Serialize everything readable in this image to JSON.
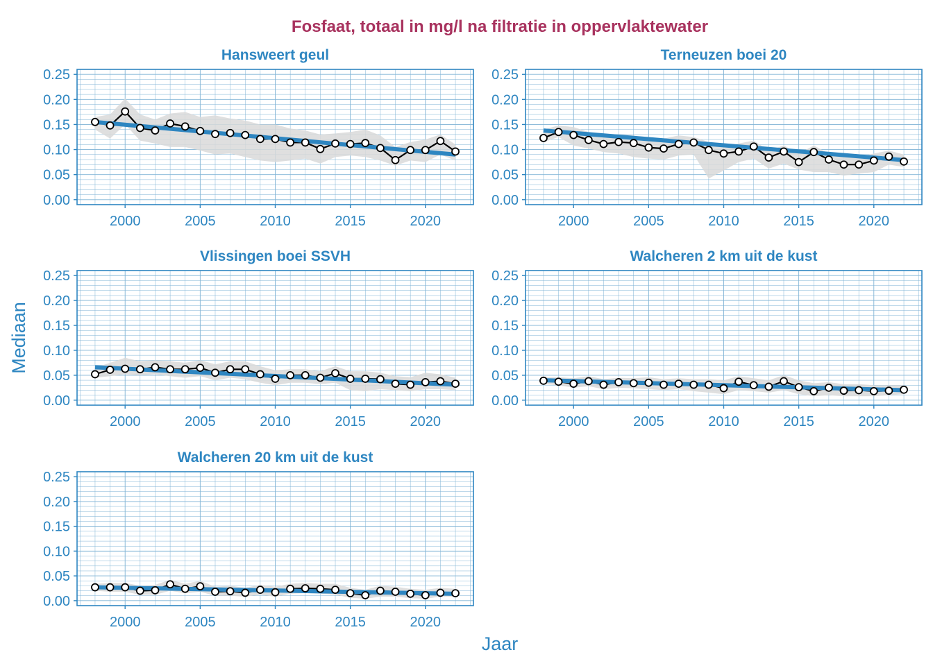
{
  "figure": {
    "title": "Fosfaat, totaal in mg/l na filtratie in oppervlaktewater",
    "xlabel": "Jaar",
    "ylabel": "Mediaan"
  },
  "colors": {
    "title": "#A8325E",
    "axis": "#2E86C1",
    "grid": "#7FB3D5",
    "trend": "#2E86C1",
    "band": "#D9D9D9",
    "points": "#000000",
    "point_fill": "#ffffff"
  },
  "chart_data": [
    {
      "type": "line",
      "title": "Hansweert geul",
      "xlim": [
        1996.8,
        2023.2
      ],
      "ylim": [
        -0.01,
        0.26
      ],
      "x_ticks": [
        2000,
        2005,
        2010,
        2015,
        2020
      ],
      "y_ticks": [
        "0.00",
        "0.05",
        "0.10",
        "0.15",
        "0.20",
        "0.25"
      ],
      "x": [
        1998,
        1999,
        2000,
        2001,
        2002,
        2003,
        2004,
        2005,
        2006,
        2007,
        2008,
        2009,
        2010,
        2011,
        2012,
        2013,
        2014,
        2015,
        2016,
        2017,
        2018,
        2019,
        2020,
        2021,
        2022
      ],
      "values": [
        0.155,
        0.148,
        0.176,
        0.143,
        0.138,
        0.152,
        0.146,
        0.137,
        0.131,
        0.133,
        0.129,
        0.121,
        0.121,
        0.114,
        0.114,
        0.101,
        0.112,
        0.111,
        0.113,
        0.103,
        0.079,
        0.099,
        0.099,
        0.117,
        0.096
      ],
      "band_low": [
        0.14,
        0.122,
        0.15,
        0.118,
        0.112,
        0.105,
        0.105,
        0.098,
        0.09,
        0.092,
        0.085,
        0.078,
        0.075,
        0.078,
        0.082,
        0.072,
        0.085,
        0.088,
        0.085,
        0.078,
        0.068,
        0.078,
        0.075,
        0.09,
        0.078
      ],
      "band_high": [
        0.165,
        0.17,
        0.202,
        0.17,
        0.16,
        0.172,
        0.175,
        0.165,
        0.168,
        0.162,
        0.158,
        0.15,
        0.15,
        0.142,
        0.138,
        0.13,
        0.132,
        0.135,
        0.14,
        0.128,
        0.105,
        0.115,
        0.12,
        0.13,
        0.11
      ],
      "trend": [
        [
          1998,
          0.155
        ],
        [
          2022,
          0.09
        ]
      ]
    },
    {
      "type": "line",
      "title": "Terneuzen boei 20",
      "xlim": [
        1996.8,
        2023.2
      ],
      "ylim": [
        -0.01,
        0.26
      ],
      "x_ticks": [
        2000,
        2005,
        2010,
        2015,
        2020
      ],
      "y_ticks": [
        "0.00",
        "0.05",
        "0.10",
        "0.15",
        "0.20",
        "0.25"
      ],
      "x": [
        1998,
        1999,
        2000,
        2001,
        2002,
        2003,
        2004,
        2005,
        2006,
        2007,
        2008,
        2009,
        2010,
        2011,
        2012,
        2013,
        2014,
        2015,
        2016,
        2017,
        2018,
        2019,
        2020,
        2021,
        2022
      ],
      "values": [
        0.123,
        0.135,
        0.129,
        0.119,
        0.111,
        0.115,
        0.113,
        0.104,
        0.102,
        0.111,
        0.114,
        0.099,
        0.092,
        0.096,
        0.106,
        0.084,
        0.096,
        0.075,
        0.095,
        0.08,
        0.07,
        0.07,
        0.078,
        0.086,
        0.076
      ],
      "band_low": [
        0.115,
        0.125,
        0.108,
        0.102,
        0.095,
        0.092,
        0.085,
        0.082,
        0.08,
        0.088,
        0.09,
        0.042,
        0.058,
        0.075,
        0.082,
        0.062,
        0.072,
        0.06,
        0.055,
        0.055,
        0.048,
        0.052,
        0.055,
        0.07,
        0.065
      ],
      "band_high": [
        0.14,
        0.148,
        0.145,
        0.135,
        0.128,
        0.13,
        0.128,
        0.122,
        0.122,
        0.128,
        0.125,
        0.115,
        0.105,
        0.112,
        0.118,
        0.098,
        0.108,
        0.092,
        0.108,
        0.092,
        0.085,
        0.085,
        0.092,
        0.098,
        0.09
      ],
      "trend": [
        [
          1998,
          0.138
        ],
        [
          2022,
          0.079
        ]
      ]
    },
    {
      "type": "line",
      "title": "Vlissingen boei SSVH",
      "xlim": [
        1996.8,
        2023.2
      ],
      "ylim": [
        -0.01,
        0.26
      ],
      "x_ticks": [
        2000,
        2005,
        2010,
        2015,
        2020
      ],
      "y_ticks": [
        "0.00",
        "0.05",
        "0.10",
        "0.15",
        "0.20",
        "0.25"
      ],
      "x": [
        1998,
        1999,
        2000,
        2001,
        2002,
        2003,
        2004,
        2005,
        2006,
        2007,
        2008,
        2009,
        2010,
        2011,
        2012,
        2013,
        2014,
        2015,
        2016,
        2017,
        2018,
        2019,
        2020,
        2021,
        2022
      ],
      "values": [
        0.052,
        0.061,
        0.063,
        0.062,
        0.066,
        0.062,
        0.062,
        0.065,
        0.055,
        0.062,
        0.062,
        0.052,
        0.043,
        0.05,
        0.05,
        0.045,
        0.054,
        0.043,
        0.043,
        0.042,
        0.033,
        0.031,
        0.036,
        0.038,
        0.033
      ],
      "band_low": [
        0.045,
        0.048,
        0.052,
        0.05,
        0.052,
        0.048,
        0.045,
        0.048,
        0.04,
        0.045,
        0.042,
        0.035,
        0.03,
        0.035,
        0.035,
        0.032,
        0.035,
        0.02,
        0.018,
        0.022,
        0.02,
        0.018,
        0.022,
        0.022,
        0.02
      ],
      "band_high": [
        0.065,
        0.075,
        0.085,
        0.078,
        0.08,
        0.078,
        0.075,
        0.08,
        0.072,
        0.078,
        0.078,
        0.068,
        0.06,
        0.062,
        0.062,
        0.058,
        0.068,
        0.058,
        0.058,
        0.055,
        0.048,
        0.046,
        0.055,
        0.052,
        0.045
      ],
      "trend": [
        [
          1998,
          0.066
        ],
        [
          2022,
          0.031
        ]
      ]
    },
    {
      "type": "line",
      "title": "Walcheren 2 km uit de kust",
      "xlim": [
        1996.8,
        2023.2
      ],
      "ylim": [
        -0.01,
        0.26
      ],
      "x_ticks": [
        2000,
        2005,
        2010,
        2015,
        2020
      ],
      "y_ticks": [
        "0.00",
        "0.05",
        "0.10",
        "0.15",
        "0.20",
        "0.25"
      ],
      "x": [
        1998,
        1999,
        2000,
        2001,
        2002,
        2003,
        2004,
        2005,
        2006,
        2007,
        2008,
        2009,
        2010,
        2011,
        2012,
        2013,
        2014,
        2015,
        2016,
        2017,
        2018,
        2019,
        2020,
        2021,
        2022
      ],
      "values": [
        0.039,
        0.037,
        0.033,
        0.038,
        0.031,
        0.036,
        0.034,
        0.035,
        0.031,
        0.033,
        0.031,
        0.031,
        0.024,
        0.037,
        0.03,
        0.027,
        0.038,
        0.026,
        0.018,
        0.025,
        0.019,
        0.02,
        0.018,
        0.019,
        0.021
      ],
      "band_low": [
        0.032,
        0.03,
        0.025,
        0.028,
        0.022,
        0.025,
        0.024,
        0.022,
        0.02,
        0.022,
        0.018,
        0.015,
        0.012,
        0.02,
        0.018,
        0.015,
        0.02,
        0.012,
        0.008,
        0.01,
        0.008,
        0.008,
        0.008,
        0.01,
        0.012
      ],
      "band_high": [
        0.046,
        0.046,
        0.044,
        0.048,
        0.042,
        0.045,
        0.044,
        0.046,
        0.042,
        0.044,
        0.042,
        0.042,
        0.04,
        0.048,
        0.044,
        0.04,
        0.05,
        0.04,
        0.034,
        0.036,
        0.032,
        0.032,
        0.03,
        0.03,
        0.03
      ],
      "trend": [
        [
          1998,
          0.04
        ],
        [
          2022,
          0.02
        ]
      ]
    },
    {
      "type": "line",
      "title": "Walcheren 20 km uit de kust",
      "xlim": [
        1996.8,
        2023.2
      ],
      "ylim": [
        -0.01,
        0.26
      ],
      "x_ticks": [
        2000,
        2005,
        2010,
        2015,
        2020
      ],
      "y_ticks": [
        "0.00",
        "0.05",
        "0.10",
        "0.15",
        "0.20",
        "0.25"
      ],
      "x": [
        1998,
        1999,
        2000,
        2001,
        2002,
        2003,
        2004,
        2005,
        2006,
        2007,
        2008,
        2009,
        2010,
        2011,
        2012,
        2013,
        2014,
        2015,
        2016,
        2017,
        2018,
        2019,
        2020,
        2021,
        2022
      ],
      "values": [
        0.027,
        0.027,
        0.027,
        0.02,
        0.021,
        0.033,
        0.024,
        0.029,
        0.018,
        0.019,
        0.016,
        0.022,
        0.017,
        0.024,
        0.025,
        0.024,
        0.022,
        0.015,
        0.011,
        0.02,
        0.018,
        0.014,
        0.011,
        0.016,
        0.015
      ],
      "band_low": [
        0.02,
        0.018,
        0.018,
        0.012,
        0.012,
        0.02,
        0.015,
        0.018,
        0.01,
        0.01,
        0.008,
        0.012,
        0.008,
        0.014,
        0.015,
        0.014,
        0.012,
        0.006,
        0.004,
        0.008,
        0.008,
        0.005,
        0.004,
        0.008,
        0.008
      ],
      "band_high": [
        0.034,
        0.036,
        0.036,
        0.03,
        0.032,
        0.042,
        0.034,
        0.04,
        0.028,
        0.03,
        0.026,
        0.032,
        0.028,
        0.034,
        0.036,
        0.034,
        0.034,
        0.026,
        0.022,
        0.03,
        0.028,
        0.024,
        0.022,
        0.026,
        0.024
      ],
      "trend": [
        [
          1998,
          0.027
        ],
        [
          2022,
          0.014
        ]
      ]
    }
  ]
}
